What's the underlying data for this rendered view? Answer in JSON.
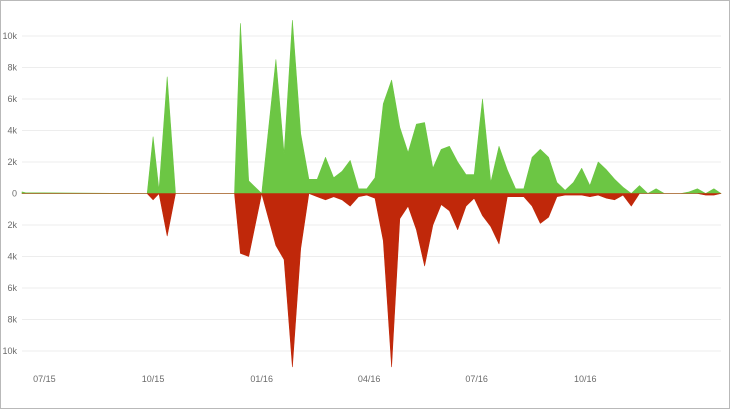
{
  "chart_data": {
    "type": "area",
    "title": "",
    "xlabel": "",
    "ylabel": "",
    "grid": true,
    "legend": "none",
    "xlim": [
      "2015-06-12",
      "2017-01-24"
    ],
    "ylim": [
      -11000,
      11000
    ],
    "x_ticks": [
      {
        "x": "2015-07-01",
        "label": "07/15"
      },
      {
        "x": "2015-10-01",
        "label": "10/15"
      },
      {
        "x": "2016-01-01",
        "label": "01/16"
      },
      {
        "x": "2016-04-01",
        "label": "04/16"
      },
      {
        "x": "2016-07-01",
        "label": "07/16"
      },
      {
        "x": "2016-10-01",
        "label": "10/16"
      }
    ],
    "y_ticks": [
      {
        "y": 10000,
        "label": "10k"
      },
      {
        "y": 8000,
        "label": "8k"
      },
      {
        "y": 6000,
        "label": "6k"
      },
      {
        "y": 4000,
        "label": "4k"
      },
      {
        "y": 2000,
        "label": "2k"
      },
      {
        "y": 0,
        "label": "0"
      },
      {
        "y": -2000,
        "label": "2k"
      },
      {
        "y": -4000,
        "label": "4k"
      },
      {
        "y": -6000,
        "label": "6k"
      },
      {
        "y": -8000,
        "label": "8k"
      },
      {
        "y": -10000,
        "label": "10k"
      }
    ],
    "series": [
      {
        "color": "#6cc644",
        "x": [
          "2015-06-12",
          "2015-06-15",
          "2015-09-26",
          "2015-10-01",
          "2015-10-06",
          "2015-10-13",
          "2015-10-20",
          "2015-12-09",
          "2015-12-14",
          "2015-12-21",
          "2016-01-01",
          "2016-01-13",
          "2016-01-20",
          "2016-01-27",
          "2016-02-03",
          "2016-02-10",
          "2016-02-17",
          "2016-02-24",
          "2016-03-02",
          "2016-03-09",
          "2016-03-16",
          "2016-03-23",
          "2016-03-30",
          "2016-04-06",
          "2016-04-13",
          "2016-04-20",
          "2016-04-27",
          "2016-05-04",
          "2016-05-11",
          "2016-05-18",
          "2016-05-25",
          "2016-06-01",
          "2016-06-08",
          "2016-06-15",
          "2016-06-22",
          "2016-06-29",
          "2016-07-06",
          "2016-07-13",
          "2016-07-20",
          "2016-07-27",
          "2016-08-03",
          "2016-08-10",
          "2016-08-17",
          "2016-08-24",
          "2016-08-31",
          "2016-09-07",
          "2016-09-14",
          "2016-09-21",
          "2016-09-28",
          "2016-10-05",
          "2016-10-12",
          "2016-10-19",
          "2016-10-26",
          "2016-11-02",
          "2016-11-09",
          "2016-11-16",
          "2016-11-23",
          "2016-11-30",
          "2016-12-07",
          "2016-12-14",
          "2016-12-21",
          "2016-12-28",
          "2017-01-04",
          "2017-01-11",
          "2017-01-18",
          "2017-01-24"
        ],
        "y": [
          100,
          50,
          0,
          3600,
          200,
          7400,
          0,
          0,
          10800,
          800,
          0,
          8500,
          2500,
          11000,
          3800,
          900,
          900,
          2300,
          1000,
          1400,
          2100,
          300,
          300,
          1000,
          5700,
          7200,
          4200,
          2600,
          4400,
          4500,
          1600,
          2800,
          3000,
          2000,
          1200,
          1200,
          6000,
          700,
          3000,
          1500,
          300,
          300,
          2300,
          2800,
          2300,
          700,
          200,
          700,
          1600,
          500,
          2000,
          1500,
          900,
          400,
          0,
          500,
          0,
          300,
          0,
          0,
          0,
          100,
          300,
          0,
          300,
          0
        ]
      },
      {
        "color": "#c0280a",
        "x": [
          "2015-06-12",
          "2015-09-26",
          "2015-10-01",
          "2015-10-06",
          "2015-10-13",
          "2015-10-20",
          "2015-12-09",
          "2015-12-14",
          "2015-12-21",
          "2016-01-01",
          "2016-01-13",
          "2016-01-20",
          "2016-01-27",
          "2016-02-03",
          "2016-02-10",
          "2016-02-17",
          "2016-02-24",
          "2016-03-02",
          "2016-03-09",
          "2016-03-16",
          "2016-03-23",
          "2016-03-30",
          "2016-04-06",
          "2016-04-13",
          "2016-04-20",
          "2016-04-27",
          "2016-05-04",
          "2016-05-11",
          "2016-05-18",
          "2016-05-25",
          "2016-06-01",
          "2016-06-08",
          "2016-06-15",
          "2016-06-22",
          "2016-06-29",
          "2016-07-06",
          "2016-07-13",
          "2016-07-20",
          "2016-07-27",
          "2016-08-03",
          "2016-08-10",
          "2016-08-17",
          "2016-08-24",
          "2016-08-31",
          "2016-09-07",
          "2016-09-14",
          "2016-09-21",
          "2016-09-28",
          "2016-10-05",
          "2016-10-12",
          "2016-10-19",
          "2016-10-26",
          "2016-11-02",
          "2016-11-09",
          "2016-11-16",
          "2016-11-23",
          "2016-11-30",
          "2016-12-07",
          "2016-12-14",
          "2016-12-21",
          "2016-12-28",
          "2017-01-04",
          "2017-01-11",
          "2017-01-18",
          "2017-01-24"
        ],
        "y": [
          0,
          0,
          -400,
          0,
          -2700,
          0,
          0,
          -3800,
          -4000,
          0,
          -3300,
          -4200,
          -11000,
          -3500,
          0,
          -200,
          -400,
          -200,
          -400,
          -800,
          -200,
          -100,
          -300,
          -3000,
          -11000,
          -1600,
          -800,
          -2300,
          -4600,
          -2000,
          -700,
          -1100,
          -2300,
          -800,
          -300,
          -1400,
          -2100,
          -3200,
          -200,
          -200,
          -200,
          -800,
          -1900,
          -1500,
          -200,
          -100,
          -100,
          -100,
          -200,
          -100,
          -300,
          -400,
          -100,
          -800,
          0,
          0,
          0,
          0,
          0,
          0,
          0,
          0,
          -100,
          -100,
          0
        ]
      }
    ]
  }
}
